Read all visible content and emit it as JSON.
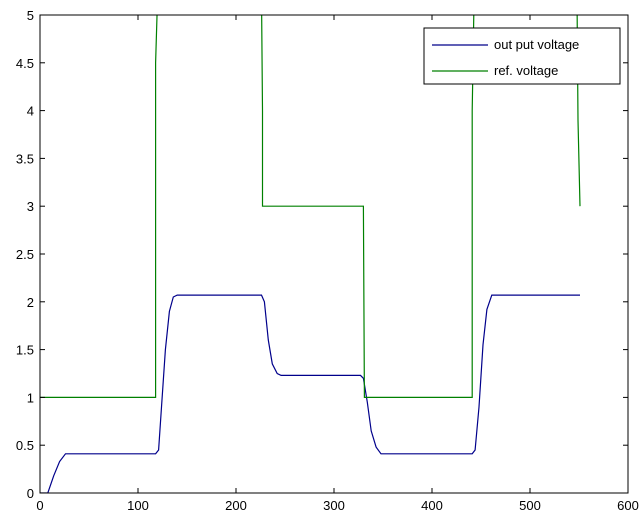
{
  "chart_data": {
    "type": "line",
    "title": "",
    "xlabel": "",
    "ylabel": "",
    "xlim": [
      0,
      600
    ],
    "ylim": [
      0,
      5
    ],
    "grid": false,
    "legend_position": "top-right",
    "x_ticks": [
      "0",
      "100",
      "200",
      "300",
      "400",
      "500",
      "600"
    ],
    "y_ticks": [
      "0",
      "0.5",
      "1",
      "1.5",
      "2",
      "2.5",
      "3",
      "3.5",
      "4",
      "4.5",
      "5"
    ],
    "x_tick_values": [
      0,
      100,
      200,
      300,
      400,
      500,
      600
    ],
    "y_tick_values": [
      0,
      0.5,
      1,
      1.5,
      2,
      2.5,
      3,
      3.5,
      4,
      4.5,
      5
    ],
    "series": [
      {
        "name": "out put voltage",
        "color": "#00008b",
        "points": [
          [
            0,
            0
          ],
          [
            8,
            0
          ],
          [
            14,
            0.18
          ],
          [
            20,
            0.33
          ],
          [
            26,
            0.41
          ],
          [
            30,
            0.41
          ],
          [
            118,
            0.41
          ],
          [
            121,
            0.45
          ],
          [
            124,
            0.9
          ],
          [
            128,
            1.5
          ],
          [
            132,
            1.9
          ],
          [
            136,
            2.05
          ],
          [
            140,
            2.07
          ],
          [
            226,
            2.07
          ],
          [
            229,
            2.0
          ],
          [
            233,
            1.6
          ],
          [
            237,
            1.35
          ],
          [
            242,
            1.25
          ],
          [
            246,
            1.23
          ],
          [
            327,
            1.23
          ],
          [
            330,
            1.2
          ],
          [
            334,
            0.95
          ],
          [
            338,
            0.65
          ],
          [
            343,
            0.48
          ],
          [
            348,
            0.41
          ],
          [
            352,
            0.41
          ],
          [
            441,
            0.41
          ],
          [
            444,
            0.45
          ],
          [
            448,
            0.9
          ],
          [
            452,
            1.55
          ],
          [
            456,
            1.92
          ],
          [
            461,
            2.07
          ],
          [
            551,
            2.07
          ]
        ]
      },
      {
        "name": "ref. voltage",
        "color": "#008000",
        "points": [
          [
            0,
            1
          ],
          [
            118,
            1
          ],
          [
            118,
            4.5
          ],
          [
            120,
            5.2
          ],
          [
            226,
            5.2
          ],
          [
            227,
            4.0
          ],
          [
            227,
            3.0
          ],
          [
            330,
            3.0
          ],
          [
            331,
            1.0
          ],
          [
            441,
            1.0
          ],
          [
            441,
            4.0
          ],
          [
            443,
            5.2
          ],
          [
            548,
            5.2
          ],
          [
            549,
            3.9
          ],
          [
            551,
            3.0
          ]
        ]
      }
    ]
  }
}
